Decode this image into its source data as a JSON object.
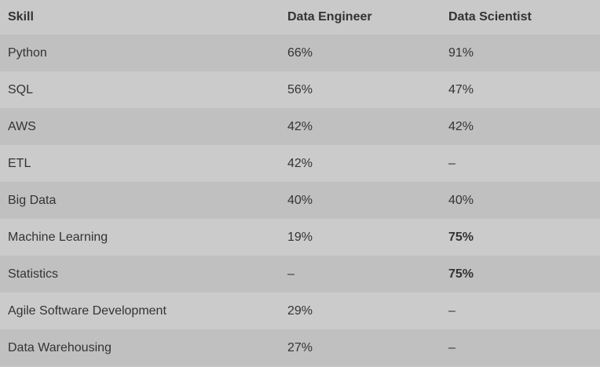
{
  "table": {
    "headers": [
      "Skill",
      "Data Engineer",
      "Data Scientist"
    ],
    "rows": [
      {
        "skill": "Python",
        "engineer": "66%",
        "scientist": "91%",
        "scientist_bold": false
      },
      {
        "skill": "SQL",
        "engineer": "56%",
        "scientist": "47%",
        "scientist_bold": false
      },
      {
        "skill": "AWS",
        "engineer": "42%",
        "scientist": "42%",
        "scientist_bold": false
      },
      {
        "skill": "ETL",
        "engineer": "42%",
        "scientist": "–",
        "scientist_bold": false
      },
      {
        "skill": "Big Data",
        "engineer": "40%",
        "scientist": "40%",
        "scientist_bold": false
      },
      {
        "skill": "Machine Learning",
        "engineer": "19%",
        "scientist": "75%",
        "scientist_bold": true
      },
      {
        "skill": "Statistics",
        "engineer": "–",
        "scientist": "75%",
        "scientist_bold": true
      },
      {
        "skill": "Agile Software Development",
        "engineer": "29%",
        "scientist": "–",
        "scientist_bold": false
      },
      {
        "skill": "Data Warehousing",
        "engineer": "27%",
        "scientist": "–",
        "scientist_bold": false
      }
    ]
  }
}
